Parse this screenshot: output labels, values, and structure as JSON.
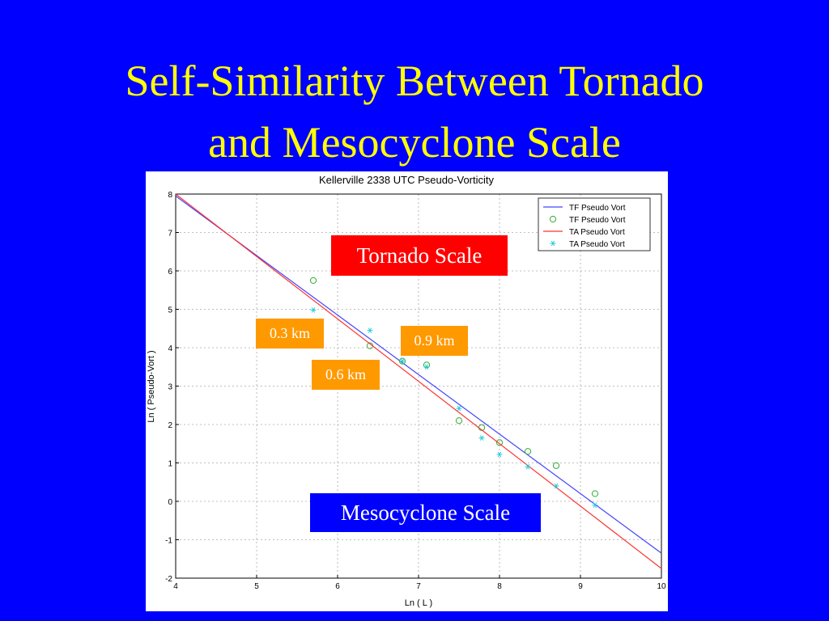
{
  "slide": {
    "title_line1": "Self-Similarity Between Tornado",
    "title_line2": "and Mesocyclone Scale",
    "background_color": "#0000ff",
    "title_color": "#ffff00"
  },
  "callouts": {
    "tornado_scale": "Tornado Scale",
    "mesocyclone_scale": "Mesocyclone Scale",
    "km_03": "0.3 km",
    "km_06": "0.6 km",
    "km_09": "0.9 km"
  },
  "chart_data": {
    "type": "scatter",
    "title": "Kellerville 2338 UTC  Pseudo-Vorticity",
    "xlabel": "Ln ( L )",
    "ylabel": "Ln ( Pseudo-Vort )",
    "xlim": [
      4,
      10
    ],
    "ylim": [
      -2,
      8
    ],
    "xticks": [
      4,
      5,
      6,
      7,
      8,
      9,
      10
    ],
    "yticks": [
      -2,
      -1,
      0,
      1,
      2,
      3,
      4,
      5,
      6,
      7,
      8
    ],
    "grid": true,
    "legend_position": "top-right",
    "series": [
      {
        "name": "TF Pseudo  Vort",
        "kind": "line",
        "color": "#4444ff",
        "x": [
          4,
          10
        ],
        "y": [
          7.95,
          -1.35
        ]
      },
      {
        "name": "TF Pseudo  Vort",
        "kind": "marker-circle",
        "color": "#33aa33",
        "x": [
          5.7,
          6.4,
          6.8,
          7.1,
          7.5,
          7.78,
          8.0,
          8.35,
          8.7,
          9.18
        ],
        "y": [
          5.75,
          4.05,
          3.65,
          3.55,
          2.1,
          1.92,
          1.53,
          1.3,
          0.93,
          0.2
        ]
      },
      {
        "name": "TA Pseudo  Vort",
        "kind": "line",
        "color": "#ff3333",
        "x": [
          4,
          10
        ],
        "y": [
          8.0,
          -1.75
        ]
      },
      {
        "name": "TA Pseudo  Vort",
        "kind": "marker-star",
        "color": "#22ccdd",
        "x": [
          5.7,
          6.4,
          6.8,
          7.1,
          7.5,
          7.78,
          8.0,
          8.35,
          8.7,
          9.18
        ],
        "y": [
          4.98,
          4.45,
          3.65,
          3.5,
          2.42,
          1.65,
          1.22,
          0.9,
          0.4,
          -0.1
        ]
      }
    ]
  }
}
